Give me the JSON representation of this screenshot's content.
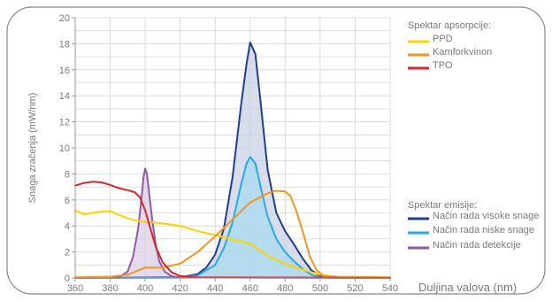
{
  "chart_data": {
    "type": "line",
    "xlabel": "Duljina valova (nm)",
    "ylabel": "Snaga zračenja (mW/nm)",
    "xlim": [
      360,
      540
    ],
    "ylim": [
      0,
      20
    ],
    "xticks": [
      360,
      380,
      400,
      420,
      440,
      460,
      480,
      500,
      520,
      540
    ],
    "yticks": [
      0,
      2,
      4,
      6,
      8,
      10,
      12,
      14,
      16,
      18,
      20
    ],
    "grid": true,
    "legend_groups": [
      {
        "title": "Spektar apsorpcije:",
        "series": [
          {
            "name": "PPD",
            "color": "#ffd200"
          },
          {
            "name": "Kamforkvinon",
            "color": "#f7941d"
          },
          {
            "name": "TPO",
            "color": "#d7262f"
          }
        ]
      },
      {
        "title": "Spektar emisije:",
        "series": [
          {
            "name": "Način rada visoke snage",
            "color": "#1f3e8c"
          },
          {
            "name": "Način rada niske snage",
            "color": "#27aae1"
          },
          {
            "name": "Način rada detekcije",
            "color": "#8e5aa6"
          }
        ]
      }
    ],
    "series": [
      {
        "name": "Način rada visoke snage",
        "color": "#1f3e8c",
        "fill": "#c9d2e3",
        "points": [
          [
            360,
            0
          ],
          [
            420,
            0.05
          ],
          [
            430,
            0.3
          ],
          [
            435,
            0.8
          ],
          [
            440,
            1.8
          ],
          [
            445,
            3.8
          ],
          [
            450,
            7.8
          ],
          [
            455,
            13.5
          ],
          [
            458,
            16.5
          ],
          [
            460,
            18.1
          ],
          [
            463,
            17.2
          ],
          [
            466,
            13.5
          ],
          [
            470,
            8.3
          ],
          [
            475,
            5.0
          ],
          [
            480,
            3.6
          ],
          [
            485,
            2.6
          ],
          [
            490,
            1.5
          ],
          [
            495,
            0.6
          ],
          [
            500,
            0.15
          ],
          [
            505,
            0.02
          ],
          [
            540,
            0
          ]
        ]
      },
      {
        "name": "Način rada niske snage",
        "color": "#27aae1",
        "fill": "#a9d9ef",
        "points": [
          [
            360,
            0
          ],
          [
            420,
            0.02
          ],
          [
            430,
            0.2
          ],
          [
            440,
            1.0
          ],
          [
            445,
            2.3
          ],
          [
            450,
            4.3
          ],
          [
            455,
            7.3
          ],
          [
            458,
            8.8
          ],
          [
            460,
            9.3
          ],
          [
            463,
            8.8
          ],
          [
            466,
            7.0
          ],
          [
            470,
            4.7
          ],
          [
            475,
            3.0
          ],
          [
            480,
            2.0
          ],
          [
            485,
            1.3
          ],
          [
            490,
            0.7
          ],
          [
            495,
            0.25
          ],
          [
            500,
            0.05
          ],
          [
            540,
            0
          ]
        ]
      },
      {
        "name": "Način rada detekcije",
        "color": "#8e5aa6",
        "fill": "#ddcfe6",
        "points": [
          [
            360,
            0
          ],
          [
            385,
            0.05
          ],
          [
            390,
            0.5
          ],
          [
            393,
            1.6
          ],
          [
            396,
            3.8
          ],
          [
            398,
            6.3
          ],
          [
            399,
            7.7
          ],
          [
            400,
            8.4
          ],
          [
            401,
            8.0
          ],
          [
            402,
            6.8
          ],
          [
            404,
            4.5
          ],
          [
            406,
            2.6
          ],
          [
            408,
            1.3
          ],
          [
            411,
            0.5
          ],
          [
            415,
            0.15
          ],
          [
            420,
            0.03
          ],
          [
            540,
            0
          ]
        ]
      },
      {
        "name": "PPD",
        "color": "#ffd200",
        "points": [
          [
            360,
            5.2
          ],
          [
            365,
            4.9
          ],
          [
            370,
            5.0
          ],
          [
            375,
            5.1
          ],
          [
            380,
            5.15
          ],
          [
            385,
            4.85
          ],
          [
            390,
            4.6
          ],
          [
            395,
            4.4
          ],
          [
            400,
            4.3
          ],
          [
            410,
            4.2
          ],
          [
            420,
            4.0
          ],
          [
            430,
            3.6
          ],
          [
            440,
            3.3
          ],
          [
            450,
            2.95
          ],
          [
            460,
            2.65
          ],
          [
            465,
            2.2
          ],
          [
            470,
            1.7
          ],
          [
            480,
            1.1
          ],
          [
            490,
            0.65
          ],
          [
            500,
            0.25
          ],
          [
            510,
            0.1
          ],
          [
            540,
            0.05
          ]
        ]
      },
      {
        "name": "Kamforkvinon",
        "color": "#f7941d",
        "points": [
          [
            360,
            0.05
          ],
          [
            380,
            0.1
          ],
          [
            390,
            0.25
          ],
          [
            400,
            0.8
          ],
          [
            410,
            0.8
          ],
          [
            420,
            1.1
          ],
          [
            430,
            2.0
          ],
          [
            440,
            3.2
          ],
          [
            450,
            4.5
          ],
          [
            460,
            5.8
          ],
          [
            470,
            6.5
          ],
          [
            475,
            6.7
          ],
          [
            480,
            6.65
          ],
          [
            483,
            6.3
          ],
          [
            486,
            5.3
          ],
          [
            490,
            3.6
          ],
          [
            494,
            1.7
          ],
          [
            498,
            0.6
          ],
          [
            502,
            0.15
          ],
          [
            510,
            0.05
          ],
          [
            540,
            0.02
          ]
        ]
      },
      {
        "name": "TPO",
        "color": "#d7262f",
        "points": [
          [
            360,
            7.1
          ],
          [
            365,
            7.3
          ],
          [
            370,
            7.4
          ],
          [
            375,
            7.35
          ],
          [
            380,
            7.15
          ],
          [
            385,
            6.9
          ],
          [
            390,
            6.75
          ],
          [
            394,
            6.6
          ],
          [
            397,
            6.2
          ],
          [
            400,
            5.2
          ],
          [
            403,
            3.8
          ],
          [
            406,
            2.4
          ],
          [
            410,
            1.2
          ],
          [
            415,
            0.45
          ],
          [
            420,
            0.15
          ],
          [
            430,
            0.05
          ],
          [
            540,
            0.02
          ]
        ]
      }
    ]
  }
}
